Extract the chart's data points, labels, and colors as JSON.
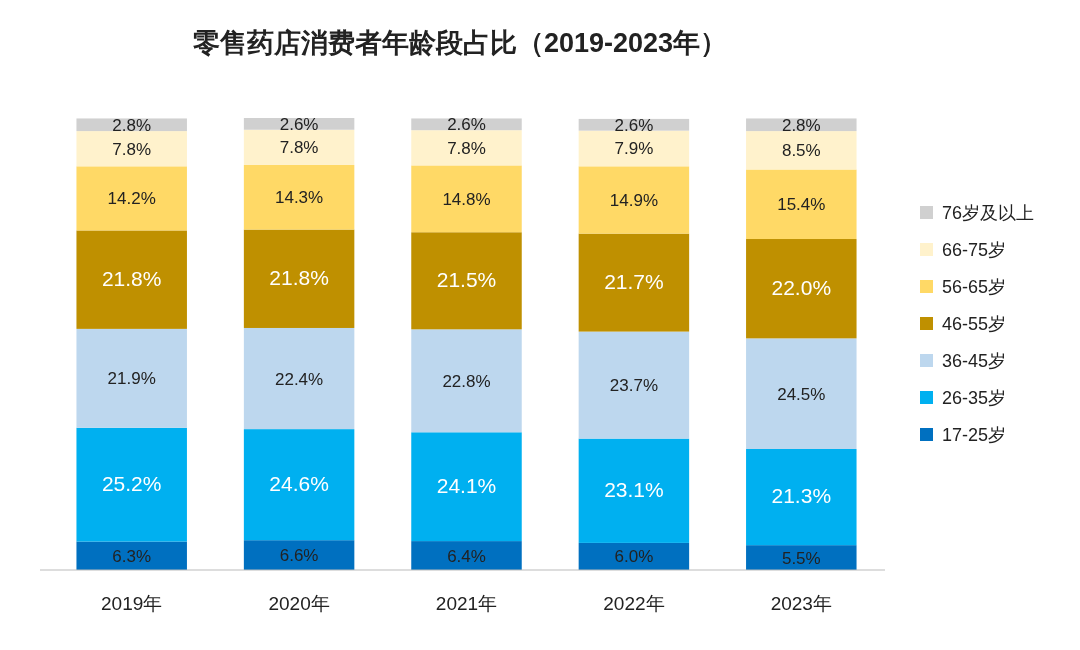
{
  "chart_data": {
    "type": "bar",
    "stacked": true,
    "title": "零售药店消费者年龄段占比（2019-2023年）",
    "categories": [
      "2019年",
      "2020年",
      "2021年",
      "2022年",
      "2023年"
    ],
    "legend": "right",
    "series": [
      {
        "name": "17-25岁",
        "color": "#0070c0",
        "values": [
          6.3,
          6.6,
          6.4,
          6.0,
          5.5
        ],
        "value_labels": [
          "6.3%",
          "6.6%",
          "6.4%",
          "6.0%",
          "5.5%"
        ]
      },
      {
        "name": "26-35岁",
        "color": "#00b0f0",
        "values": [
          25.2,
          24.6,
          24.1,
          23.1,
          21.3
        ],
        "value_labels": [
          "25.2%",
          "24.6%",
          "24.1%",
          "23.1%",
          "21.3%"
        ]
      },
      {
        "name": "36-45岁",
        "color": "#bdd7ee",
        "values": [
          21.9,
          22.4,
          22.8,
          23.7,
          24.5
        ],
        "value_labels": [
          "21.9%",
          "22.4%",
          "22.8%",
          "23.7%",
          "24.5%"
        ]
      },
      {
        "name": "46-55岁",
        "color": "#bf9000",
        "values": [
          21.8,
          21.8,
          21.5,
          21.7,
          22.0
        ],
        "value_labels": [
          "21.8%",
          "21.8%",
          "21.5%",
          "21.7%",
          "22.0%"
        ]
      },
      {
        "name": "56-65岁",
        "color": "#ffd966",
        "values": [
          14.2,
          14.3,
          14.8,
          14.9,
          15.4
        ],
        "value_labels": [
          "14.2%",
          "14.3%",
          "14.8%",
          "14.9%",
          "15.4%"
        ]
      },
      {
        "name": "66-75岁",
        "color": "#fff2cc",
        "values": [
          7.8,
          7.8,
          7.8,
          7.9,
          8.5
        ],
        "value_labels": [
          "7.8%",
          "7.8%",
          "7.8%",
          "7.9%",
          "8.5%"
        ]
      },
      {
        "name": "76岁及以上",
        "color": "#d0d0d0",
        "values": [
          2.8,
          2.6,
          2.6,
          2.6,
          2.8
        ],
        "value_labels": [
          "2.8%",
          "2.6%",
          "2.6%",
          "2.6%",
          "2.8%"
        ]
      }
    ]
  }
}
